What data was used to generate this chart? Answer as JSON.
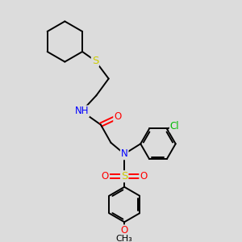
{
  "bg_color": "#dcdcdc",
  "atom_colors": {
    "C": "#000000",
    "N": "#0000ff",
    "O": "#ff0000",
    "S": "#cccc00",
    "Cl": "#00bb00",
    "H": "#444444"
  },
  "bond_color": "#000000",
  "bond_width": 1.4,
  "font_size": 8.5,
  "fig_size": [
    3.0,
    3.0
  ],
  "dpi": 100
}
